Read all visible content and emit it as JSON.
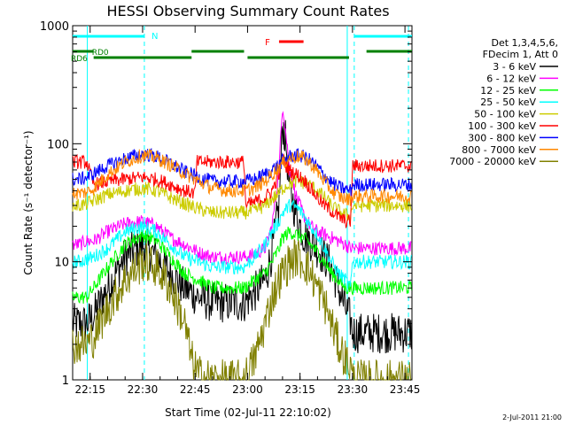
{
  "chart_data": {
    "type": "line",
    "title": "HESSI Observing Summary Count Rates",
    "xlabel": "Start Time (02-Jul-11 22:10:02)",
    "ylabel": "Count Rate (s⁻¹ detector⁻¹)",
    "y_scale": "log",
    "ylim": [
      1,
      1000
    ],
    "xlim_minutes": [
      0,
      97
    ],
    "x_tick_labels": [
      "22:15",
      "22:30",
      "22:45",
      "23:00",
      "23:15",
      "23:30",
      "23:45"
    ],
    "x_tick_minutes": [
      5,
      20,
      35,
      50,
      65,
      80,
      95
    ],
    "y_tick_labels": [
      "1",
      "10",
      "100",
      "1000"
    ],
    "y_tick_values": [
      1,
      10,
      100,
      1000
    ],
    "legend_title_lines": [
      "Det 1,3,4,5,6,",
      "FDecim 1, Att 0"
    ],
    "footer": "2-Jul-2011 21:00",
    "series": [
      {
        "name": "3 - 6 keV",
        "color": "#000000",
        "points": [
          [
            0,
            3
          ],
          [
            2,
            3
          ],
          [
            4,
            3
          ],
          [
            6,
            3.5
          ],
          [
            10,
            6
          ],
          [
            15,
            11
          ],
          [
            20,
            14
          ],
          [
            24,
            11
          ],
          [
            28,
            8
          ],
          [
            32,
            6
          ],
          [
            36,
            5
          ],
          [
            40,
            4.5
          ],
          [
            45,
            4.5
          ],
          [
            49,
            4.5
          ],
          [
            52,
            5.5
          ],
          [
            55,
            7
          ],
          [
            57,
            12
          ],
          [
            59,
            30
          ],
          [
            60,
            150
          ],
          [
            61,
            100
          ],
          [
            62,
            40
          ],
          [
            64,
            25
          ],
          [
            66,
            17
          ],
          [
            68,
            15
          ],
          [
            70,
            13
          ],
          [
            72,
            11
          ],
          [
            74,
            9
          ],
          [
            76,
            6
          ],
          [
            78,
            4
          ],
          [
            79.5,
            3.2
          ],
          [
            80,
            2.5
          ],
          [
            84,
            2.5
          ],
          [
            88,
            2.5
          ],
          [
            92,
            2.5
          ],
          [
            97,
            2.5
          ]
        ]
      },
      {
        "name": "6 - 12 keV",
        "color": "#ff00ff",
        "points": [
          [
            0,
            14
          ],
          [
            2,
            14
          ],
          [
            4,
            15
          ],
          [
            6,
            15
          ],
          [
            10,
            18
          ],
          [
            15,
            21
          ],
          [
            20,
            22
          ],
          [
            24,
            20
          ],
          [
            28,
            16
          ],
          [
            32,
            14
          ],
          [
            36,
            12
          ],
          [
            40,
            11
          ],
          [
            45,
            11
          ],
          [
            49,
            11
          ],
          [
            52,
            11.5
          ],
          [
            55,
            13
          ],
          [
            57,
            20
          ],
          [
            59,
            60
          ],
          [
            60,
            220
          ],
          [
            61,
            120
          ],
          [
            62,
            60
          ],
          [
            64,
            35
          ],
          [
            66,
            25
          ],
          [
            68,
            20
          ],
          [
            70,
            18
          ],
          [
            72,
            17
          ],
          [
            74,
            16
          ],
          [
            76,
            15
          ],
          [
            78,
            14
          ],
          [
            79.5,
            13
          ],
          [
            80,
            13
          ],
          [
            84,
            13
          ],
          [
            88,
            13
          ],
          [
            92,
            13
          ],
          [
            97,
            13
          ]
        ]
      },
      {
        "name": "12 - 25 keV",
        "color": "#00ff00",
        "points": [
          [
            0,
            5
          ],
          [
            2,
            5
          ],
          [
            4,
            5
          ],
          [
            6,
            6
          ],
          [
            10,
            9
          ],
          [
            15,
            14
          ],
          [
            20,
            17
          ],
          [
            24,
            15
          ],
          [
            28,
            11
          ],
          [
            32,
            8
          ],
          [
            36,
            7
          ],
          [
            40,
            6
          ],
          [
            45,
            6
          ],
          [
            49,
            6
          ],
          [
            52,
            7
          ],
          [
            55,
            8
          ],
          [
            57,
            10
          ],
          [
            59,
            13
          ],
          [
            60,
            16
          ],
          [
            62,
            18
          ],
          [
            64,
            17
          ],
          [
            66,
            16
          ],
          [
            68,
            14
          ],
          [
            70,
            12
          ],
          [
            72,
            10
          ],
          [
            74,
            8
          ],
          [
            76,
            7
          ],
          [
            78,
            6
          ],
          [
            79.5,
            6
          ],
          [
            80,
            6
          ],
          [
            84,
            6
          ],
          [
            88,
            6
          ],
          [
            92,
            6
          ],
          [
            97,
            6
          ]
        ]
      },
      {
        "name": "25 - 50 keV",
        "color": "#00ffff",
        "points": [
          [
            0,
            10
          ],
          [
            2,
            10
          ],
          [
            4,
            10.5
          ],
          [
            6,
            11
          ],
          [
            10,
            13
          ],
          [
            15,
            18
          ],
          [
            20,
            20
          ],
          [
            24,
            18
          ],
          [
            28,
            14
          ],
          [
            32,
            11
          ],
          [
            36,
            10
          ],
          [
            40,
            9
          ],
          [
            45,
            9
          ],
          [
            49,
            9
          ],
          [
            52,
            11
          ],
          [
            55,
            14
          ],
          [
            57,
            18
          ],
          [
            59,
            22
          ],
          [
            60,
            26
          ],
          [
            62,
            30
          ],
          [
            64,
            29
          ],
          [
            66,
            25
          ],
          [
            68,
            20
          ],
          [
            70,
            17
          ],
          [
            72,
            13
          ],
          [
            74,
            10
          ],
          [
            76,
            8
          ],
          [
            78,
            7
          ],
          [
            79.5,
            6
          ],
          [
            80,
            10
          ],
          [
            84,
            10
          ],
          [
            88,
            10
          ],
          [
            92,
            10
          ],
          [
            97,
            10
          ]
        ]
      },
      {
        "name": "50 - 100 keV",
        "color": "#cccc00",
        "points": [
          [
            0,
            30
          ],
          [
            2,
            30
          ],
          [
            4,
            31
          ],
          [
            6,
            33
          ],
          [
            10,
            37
          ],
          [
            15,
            40
          ],
          [
            20,
            42
          ],
          [
            24,
            40
          ],
          [
            28,
            35
          ],
          [
            32,
            31
          ],
          [
            36,
            28
          ],
          [
            40,
            26
          ],
          [
            45,
            26
          ],
          [
            49,
            26
          ],
          [
            52,
            27
          ],
          [
            55,
            30
          ],
          [
            57,
            34
          ],
          [
            59,
            38
          ],
          [
            60,
            42
          ],
          [
            62,
            46
          ],
          [
            64,
            48
          ],
          [
            66,
            47
          ],
          [
            68,
            44
          ],
          [
            70,
            40
          ],
          [
            72,
            35
          ],
          [
            74,
            30
          ],
          [
            76,
            27
          ],
          [
            78,
            25
          ],
          [
            79.5,
            24
          ],
          [
            80,
            30
          ],
          [
            84,
            30
          ],
          [
            88,
            30
          ],
          [
            92,
            30
          ],
          [
            97,
            30
          ]
        ]
      },
      {
        "name": "100 - 300 keV",
        "color": "#ff0000",
        "points": [
          [
            0,
            70
          ],
          [
            2,
            70
          ],
          [
            4,
            70
          ],
          [
            6,
            45
          ],
          [
            10,
            48
          ],
          [
            15,
            50
          ],
          [
            20,
            52
          ],
          [
            24,
            50
          ],
          [
            28,
            45
          ],
          [
            32,
            40
          ],
          [
            35,
            38
          ],
          [
            35.5,
            70
          ],
          [
            40,
            70
          ],
          [
            45,
            70
          ],
          [
            49,
            70
          ],
          [
            49.5,
            30
          ],
          [
            52,
            32
          ],
          [
            55,
            35
          ],
          [
            57,
            40
          ],
          [
            59,
            55
          ],
          [
            60,
            75
          ],
          [
            61,
            65
          ],
          [
            62,
            60
          ],
          [
            64,
            55
          ],
          [
            66,
            50
          ],
          [
            68,
            42
          ],
          [
            70,
            35
          ],
          [
            72,
            30
          ],
          [
            74,
            27
          ],
          [
            76,
            24
          ],
          [
            78,
            22
          ],
          [
            79.5,
            22
          ],
          [
            80,
            65
          ],
          [
            84,
            65
          ],
          [
            88,
            65
          ],
          [
            92,
            65
          ],
          [
            97,
            65
          ]
        ]
      },
      {
        "name": "300 - 800 keV",
        "color": "#0000ff",
        "points": [
          [
            0,
            50
          ],
          [
            2,
            50
          ],
          [
            4,
            52
          ],
          [
            6,
            56
          ],
          [
            10,
            65
          ],
          [
            15,
            75
          ],
          [
            20,
            82
          ],
          [
            24,
            78
          ],
          [
            28,
            68
          ],
          [
            32,
            58
          ],
          [
            36,
            52
          ],
          [
            40,
            48
          ],
          [
            45,
            48
          ],
          [
            49,
            48
          ],
          [
            52,
            50
          ],
          [
            55,
            55
          ],
          [
            57,
            60
          ],
          [
            59,
            66
          ],
          [
            60,
            72
          ],
          [
            62,
            78
          ],
          [
            64,
            80
          ],
          [
            66,
            78
          ],
          [
            68,
            72
          ],
          [
            70,
            63
          ],
          [
            72,
            54
          ],
          [
            74,
            47
          ],
          [
            76,
            43
          ],
          [
            78,
            41
          ],
          [
            79.5,
            40
          ],
          [
            80,
            45
          ],
          [
            84,
            45
          ],
          [
            88,
            45
          ],
          [
            92,
            45
          ],
          [
            97,
            45
          ]
        ]
      },
      {
        "name": "800 - 7000 keV",
        "color": "#ff8800",
        "points": [
          [
            0,
            38
          ],
          [
            2,
            38
          ],
          [
            4,
            39
          ],
          [
            6,
            42
          ],
          [
            10,
            55
          ],
          [
            15,
            70
          ],
          [
            20,
            80
          ],
          [
            24,
            76
          ],
          [
            28,
            66
          ],
          [
            32,
            56
          ],
          [
            36,
            48
          ],
          [
            40,
            42
          ],
          [
            45,
            40
          ],
          [
            49,
            40
          ],
          [
            52,
            42
          ],
          [
            55,
            48
          ],
          [
            57,
            55
          ],
          [
            59,
            63
          ],
          [
            60,
            68
          ],
          [
            62,
            75
          ],
          [
            64,
            78
          ],
          [
            66,
            76
          ],
          [
            68,
            68
          ],
          [
            70,
            58
          ],
          [
            72,
            48
          ],
          [
            74,
            40
          ],
          [
            76,
            36
          ],
          [
            78,
            34
          ],
          [
            79.5,
            34
          ],
          [
            80,
            36
          ],
          [
            84,
            36
          ],
          [
            88,
            36
          ],
          [
            92,
            36
          ],
          [
            97,
            36
          ]
        ]
      },
      {
        "name": "7000 - 20000 keV",
        "color": "#808000",
        "points": [
          [
            0,
            2
          ],
          [
            2,
            2
          ],
          [
            4,
            2
          ],
          [
            6,
            2.3
          ],
          [
            10,
            4
          ],
          [
            15,
            7
          ],
          [
            20,
            10
          ],
          [
            24,
            9
          ],
          [
            28,
            6
          ],
          [
            32,
            3
          ],
          [
            34,
            1.5
          ],
          [
            36,
            1.1
          ],
          [
            40,
            1
          ],
          [
            45,
            1
          ],
          [
            49,
            1
          ],
          [
            52,
            1.5
          ],
          [
            55,
            3
          ],
          [
            57,
            5
          ],
          [
            59,
            7
          ],
          [
            60,
            8
          ],
          [
            62,
            10
          ],
          [
            64,
            11
          ],
          [
            66,
            10
          ],
          [
            68,
            8
          ],
          [
            70,
            6
          ],
          [
            72,
            4.5
          ],
          [
            74,
            3
          ],
          [
            76,
            2
          ],
          [
            78,
            1.5
          ],
          [
            79.5,
            1.3
          ],
          [
            80,
            1
          ],
          [
            84,
            1
          ],
          [
            88,
            1
          ],
          [
            92,
            1
          ],
          [
            97,
            1
          ]
        ]
      }
    ],
    "annotations": {
      "N_label": "N",
      "F_label": "F",
      "RD0_label": "RD0",
      "RD6_label": "RD6",
      "N_color": "#00ffff",
      "F_color": "#ff0000",
      "RD_color": "#008000",
      "dashed_line_color": "#00ffff"
    }
  }
}
